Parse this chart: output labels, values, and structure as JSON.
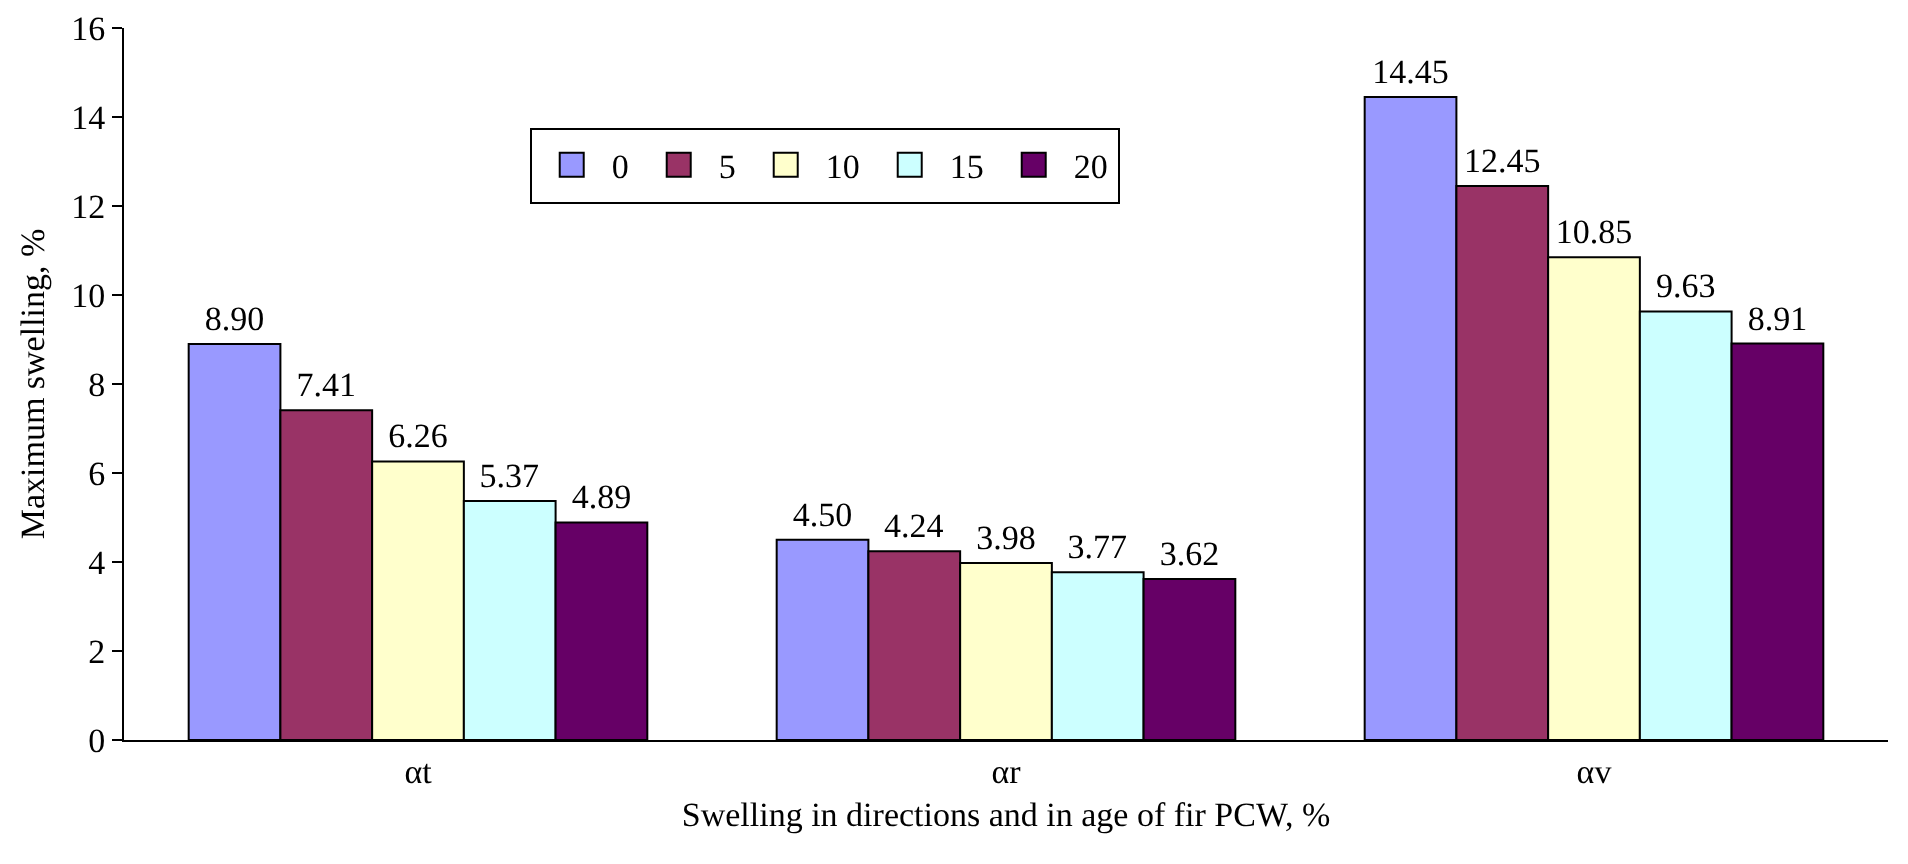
{
  "chart_data": {
    "type": "bar",
    "xlabel": "Swelling in directions and in age of fir PCW, %",
    "ylabel": "Maximum swelling, %",
    "categories": [
      "αt",
      "αr",
      "αv"
    ],
    "series": [
      {
        "name": "0",
        "color": "#9999ff",
        "values": [
          8.9,
          4.5,
          14.45
        ],
        "value_labels": [
          "8.90",
          "4.50",
          "14.45"
        ]
      },
      {
        "name": "5",
        "color": "#993366",
        "values": [
          7.41,
          4.24,
          12.45
        ],
        "value_labels": [
          "7.41",
          "4.24",
          "12.45"
        ]
      },
      {
        "name": "10",
        "color": "#ffffcc",
        "values": [
          6.26,
          3.98,
          10.85
        ],
        "value_labels": [
          "6.26",
          "3.98",
          "10.85"
        ]
      },
      {
        "name": "15",
        "color": "#ccffff",
        "values": [
          5.37,
          3.77,
          9.63
        ],
        "value_labels": [
          "5.37",
          "3.77",
          "9.63"
        ]
      },
      {
        "name": "20",
        "color": "#660066",
        "values": [
          4.89,
          3.62,
          8.91
        ],
        "value_labels": [
          "4.89",
          "3.62",
          "8.91"
        ]
      }
    ],
    "ylim": [
      0,
      16
    ],
    "yticks": [
      0,
      2,
      4,
      6,
      8,
      10,
      12,
      14,
      16
    ],
    "grid": false,
    "legend": "top left"
  }
}
